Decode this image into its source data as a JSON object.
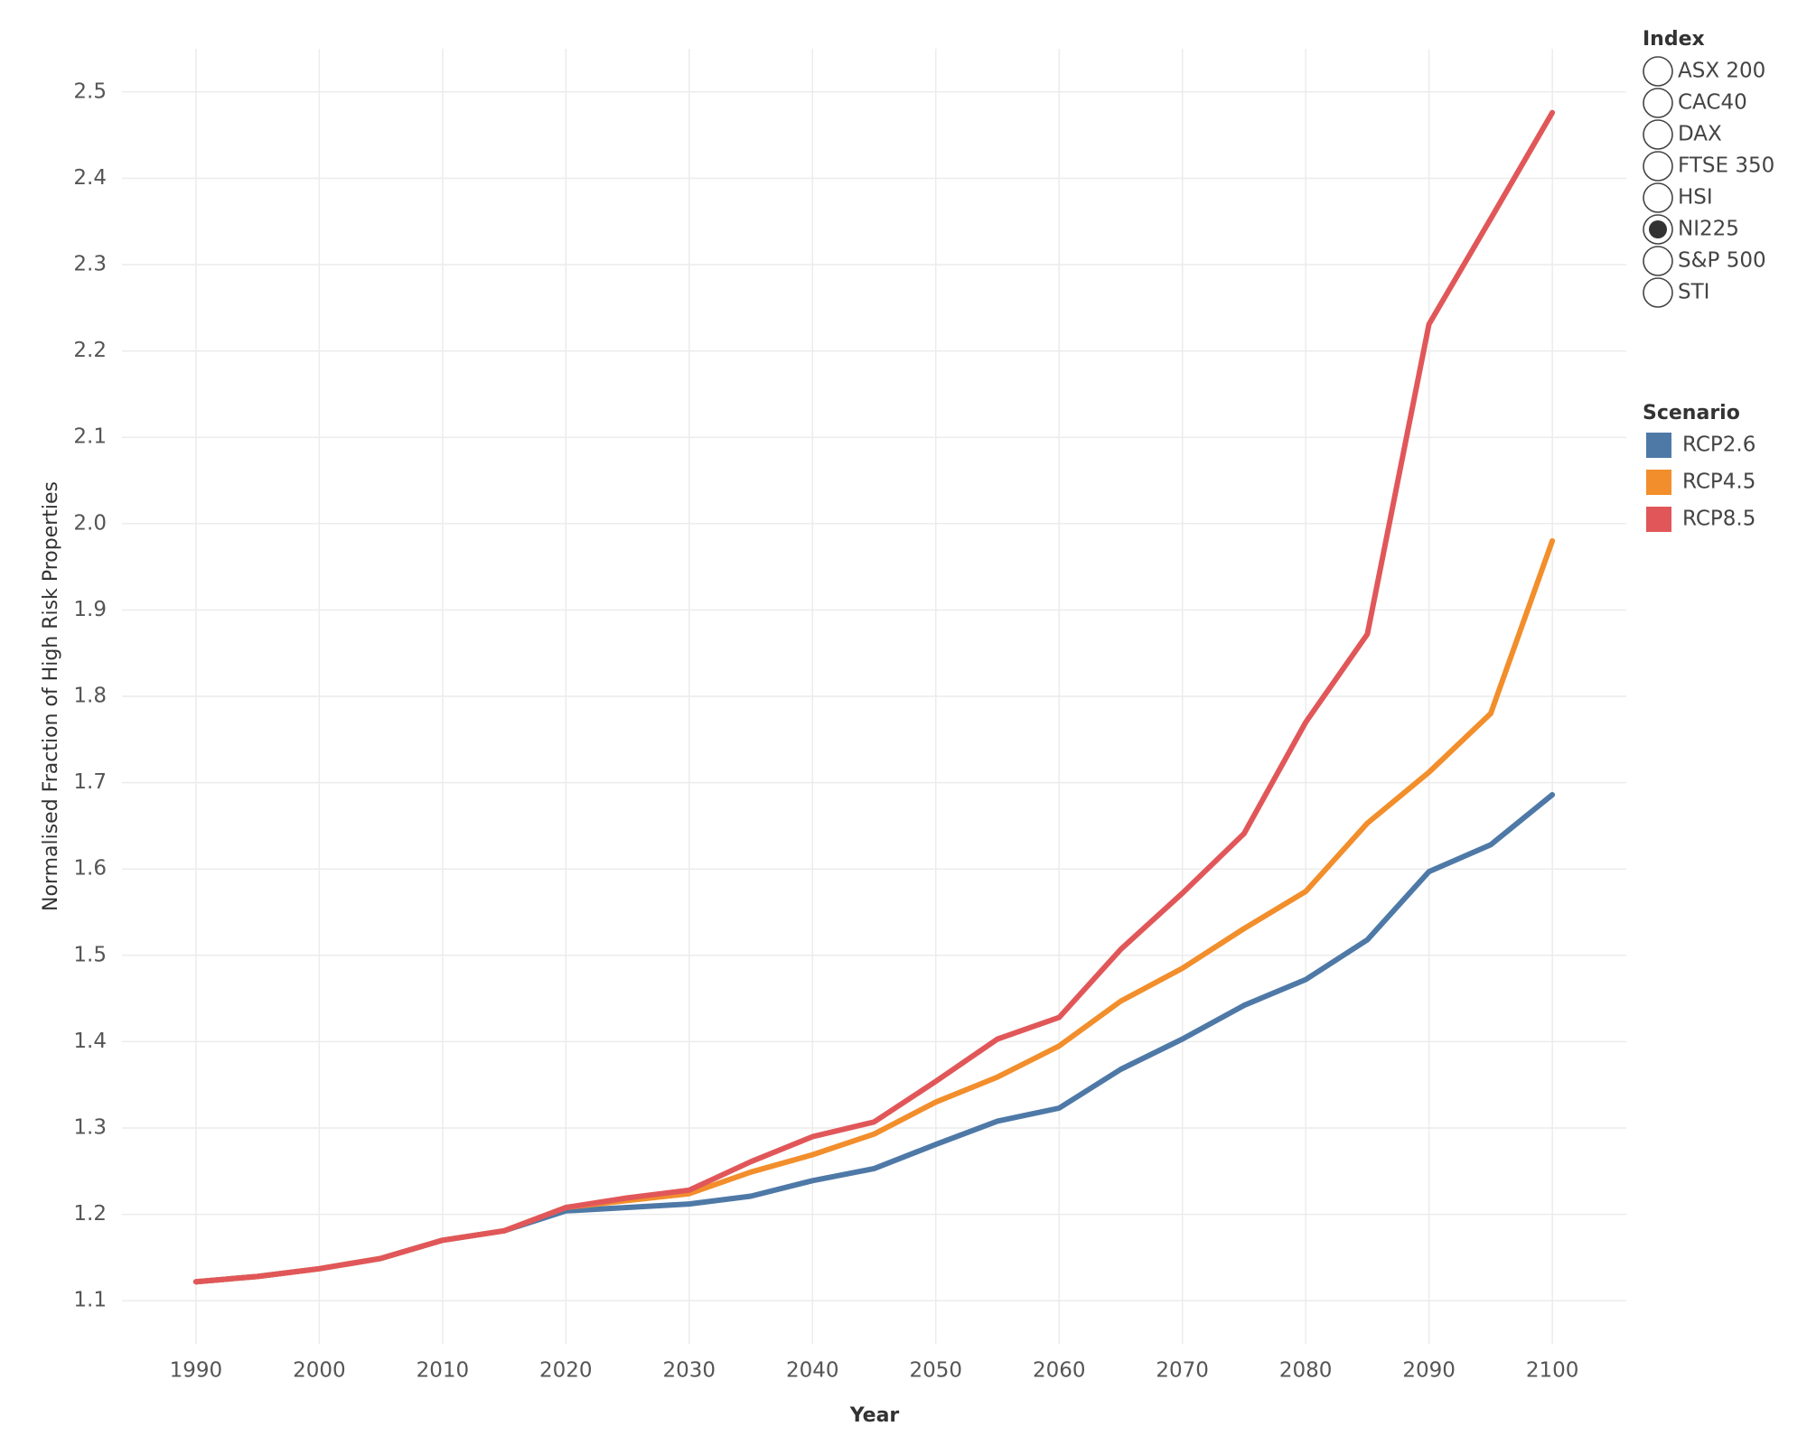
{
  "chart_data": {
    "type": "line",
    "x_label": "Year",
    "y_label": "Normalised Fraction of High Risk Properties",
    "x": [
      1990,
      1995,
      2000,
      2005,
      2010,
      2015,
      2020,
      2025,
      2030,
      2035,
      2040,
      2045,
      2050,
      2055,
      2060,
      2065,
      2070,
      2075,
      2080,
      2085,
      2090,
      2095,
      2100
    ],
    "series": [
      {
        "name": "RCP2.6",
        "color": "#4e79a7",
        "values": [
          1.122,
          1.128,
          1.137,
          1.149,
          1.17,
          1.181,
          1.204,
          1.208,
          1.212,
          1.221,
          1.239,
          1.253,
          1.281,
          1.308,
          1.323,
          1.368,
          1.403,
          1.442,
          1.472,
          1.518,
          1.597,
          1.628,
          1.686
        ]
      },
      {
        "name": "RCP4.5",
        "color": "#f28e2b",
        "values": [
          1.122,
          1.128,
          1.137,
          1.149,
          1.17,
          1.181,
          1.208,
          1.216,
          1.224,
          1.249,
          1.269,
          1.293,
          1.33,
          1.359,
          1.395,
          1.447,
          1.485,
          1.531,
          1.574,
          1.653,
          1.712,
          1.78,
          1.98
        ]
      },
      {
        "name": "RCP8.5",
        "color": "#e15759",
        "values": [
          1.122,
          1.128,
          1.137,
          1.149,
          1.17,
          1.181,
          1.208,
          1.219,
          1.228,
          1.261,
          1.29,
          1.307,
          1.354,
          1.403,
          1.428,
          1.507,
          1.572,
          1.641,
          1.77,
          1.872,
          2.231,
          2.353,
          2.476
        ]
      }
    ],
    "xlim": [
      1984,
      2106
    ],
    "xticks": [
      1990,
      2000,
      2010,
      2020,
      2030,
      2040,
      2050,
      2060,
      2070,
      2080,
      2090,
      2100
    ],
    "ylim": [
      1.05,
      2.55
    ],
    "yticks": [
      1.1,
      1.2,
      1.3,
      1.4,
      1.5,
      1.6,
      1.7,
      1.8,
      1.9,
      {
        "value": 2,
        "label": "2.0"
      },
      2.1,
      2.2,
      2.3,
      2.4,
      2.5
    ],
    "grid": true,
    "legend_title": "Scenario",
    "index_filter": {
      "title": "Index",
      "options": [
        "ASX 200",
        "CAC40",
        "DAX",
        "FTSE 350",
        "HSI",
        "NI225",
        "S&P 500",
        "STI"
      ],
      "selected": "NI225"
    }
  }
}
